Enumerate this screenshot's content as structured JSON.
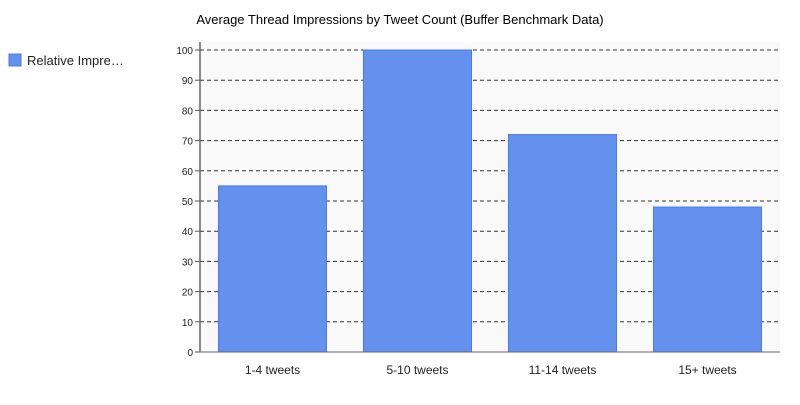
{
  "chart_data": {
    "type": "bar",
    "title": "Average Thread Impressions by Tweet Count (Buffer Benchmark Data)",
    "categories": [
      "1-4 tweets",
      "5-10 tweets",
      "11-14 tweets",
      "15+ tweets"
    ],
    "series": [
      {
        "name": "Relative Impre…",
        "values": [
          55,
          100,
          72,
          48
        ]
      }
    ],
    "xlabel": "",
    "ylabel": "",
    "ylim": [
      0,
      100
    ],
    "yticks": [
      0,
      10,
      20,
      30,
      40,
      50,
      60,
      70,
      80,
      90,
      100
    ],
    "grid": true,
    "legend": "left",
    "colors": {
      "bar": "#6490ee",
      "bar_border": "#4a7ae8",
      "plot_bg": "#f9f9f9",
      "grid": "#333333"
    }
  }
}
